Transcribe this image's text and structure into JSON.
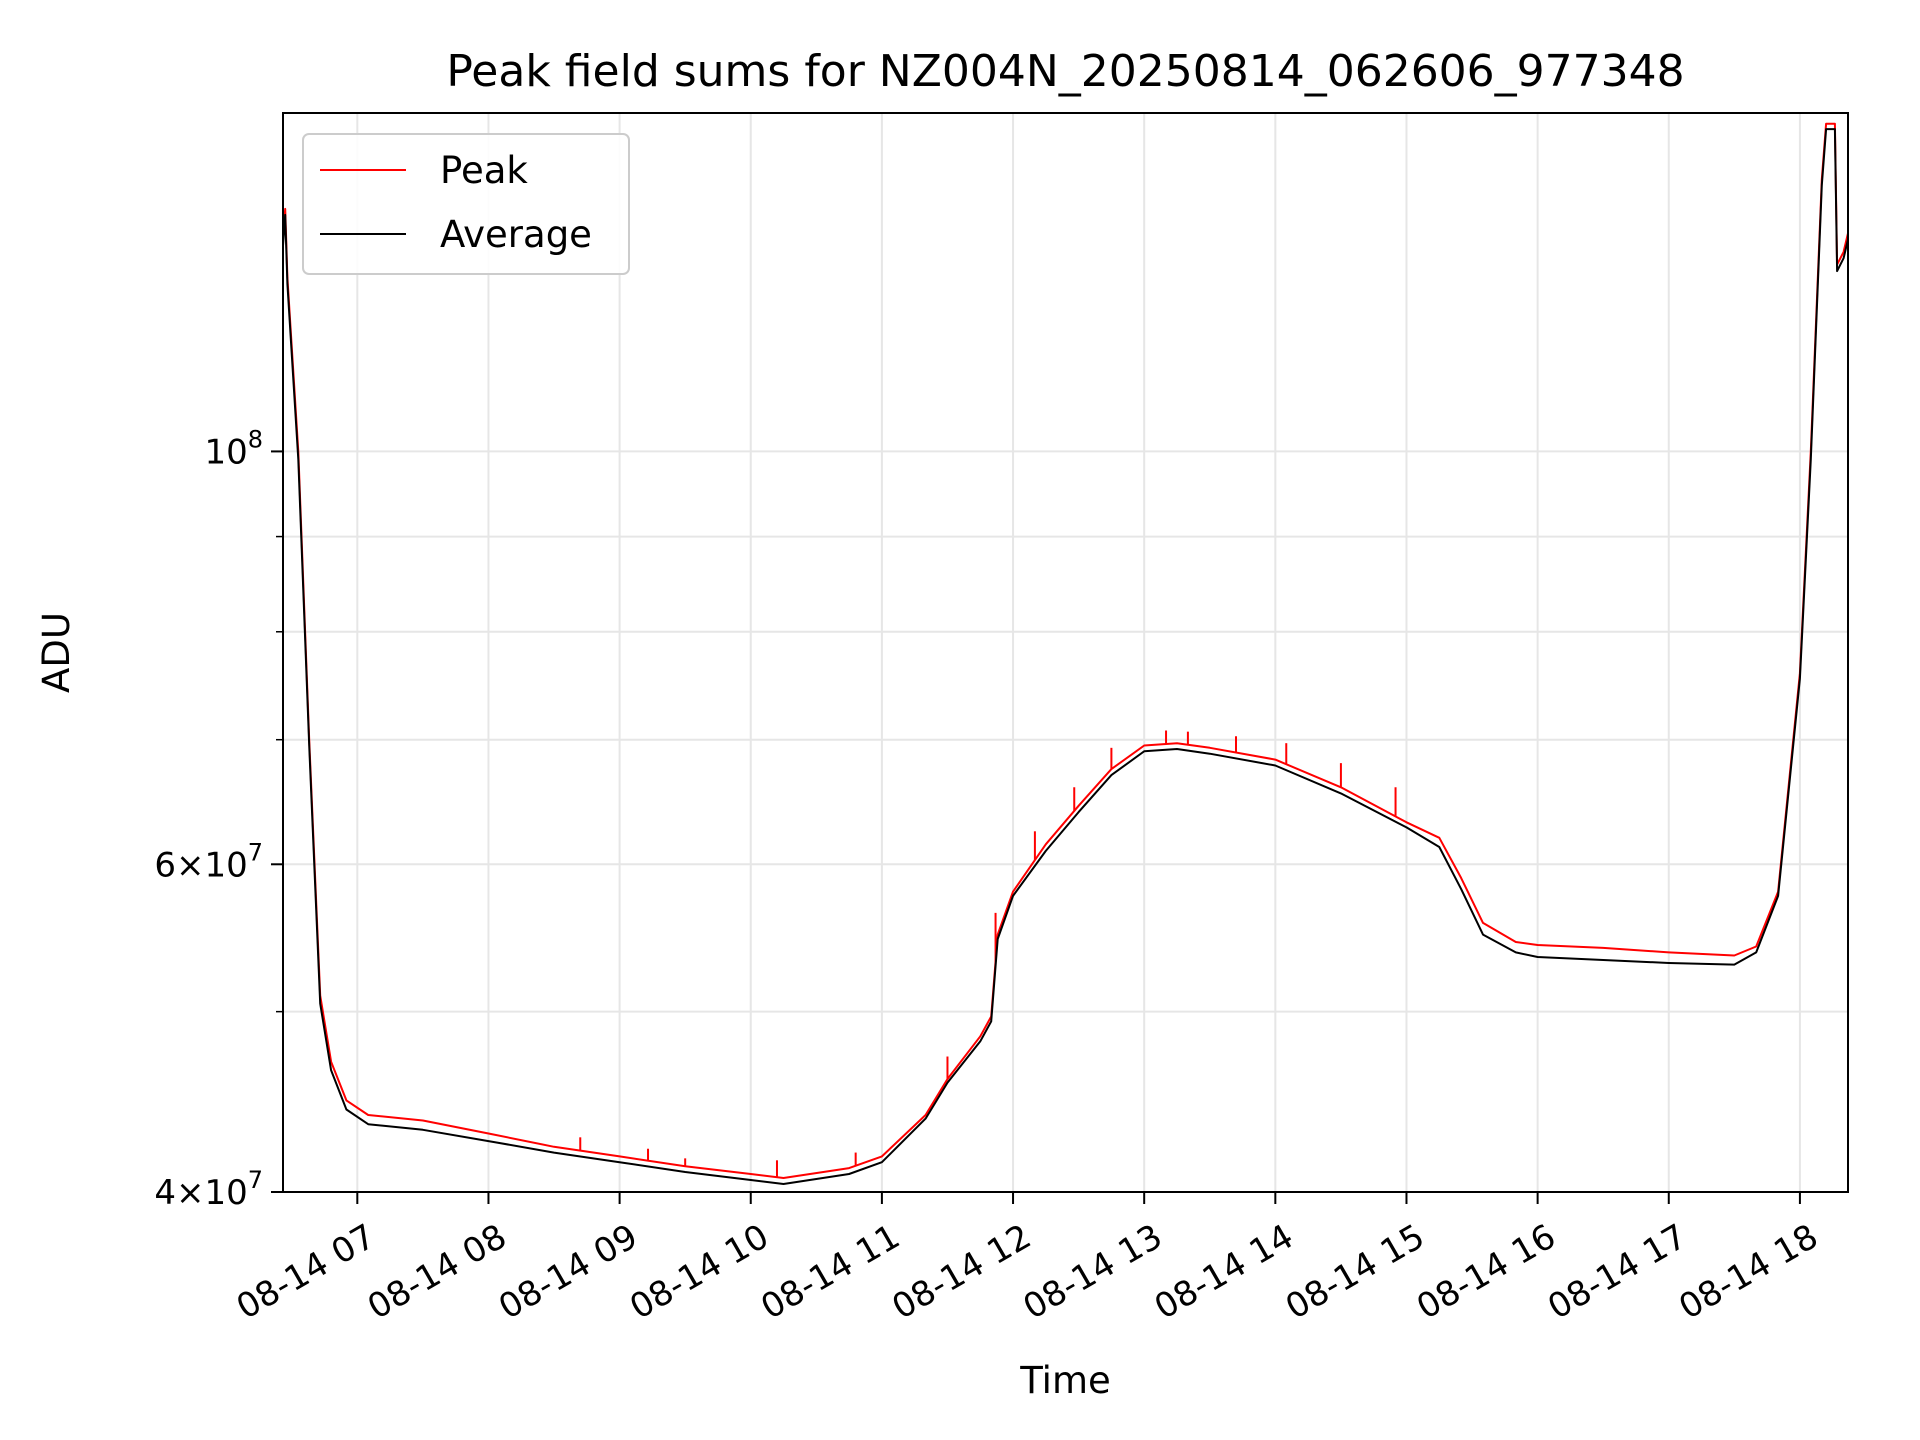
{
  "chart_data": {
    "type": "line",
    "title": "Peak field sums for NZ004N_20250814_062606_977348",
    "xlabel": "Time",
    "ylabel": "ADU",
    "yscale": "log",
    "ylim": [
      40000000,
      152000000
    ],
    "xlim": [
      "2025-08-14T06:26",
      "2025-08-14T18:22"
    ],
    "grid": true,
    "legend": "top-left",
    "x_ticks": [
      {
        "value": "2025-08-14T07:00",
        "label": "08-14 07"
      },
      {
        "value": "2025-08-14T08:00",
        "label": "08-14 08"
      },
      {
        "value": "2025-08-14T09:00",
        "label": "08-14 09"
      },
      {
        "value": "2025-08-14T10:00",
        "label": "08-14 10"
      },
      {
        "value": "2025-08-14T11:00",
        "label": "08-14 11"
      },
      {
        "value": "2025-08-14T12:00",
        "label": "08-14 12"
      },
      {
        "value": "2025-08-14T13:00",
        "label": "08-14 13"
      },
      {
        "value": "2025-08-14T14:00",
        "label": "08-14 14"
      },
      {
        "value": "2025-08-14T15:00",
        "label": "08-14 15"
      },
      {
        "value": "2025-08-14T16:00",
        "label": "08-14 16"
      },
      {
        "value": "2025-08-14T17:00",
        "label": "08-14 17"
      },
      {
        "value": "2025-08-14T18:00",
        "label": "08-14 18"
      }
    ],
    "y_ticks": [
      {
        "value": 40000000,
        "base": "4×10",
        "exp": "7"
      },
      {
        "value": 60000000,
        "base": "6×10",
        "exp": "7"
      },
      {
        "value": 100000000,
        "base": "10",
        "exp": "8"
      }
    ],
    "y_minor": [
      50000000,
      70000000,
      80000000,
      90000000
    ],
    "series": [
      {
        "name": "Peak",
        "color": "#ff0000",
        "x": [
          "2025-08-14T06:26",
          "2025-08-14T06:27",
          "2025-08-14T06:28",
          "2025-08-14T06:33",
          "2025-08-14T06:38",
          "2025-08-14T06:43",
          "2025-08-14T06:48",
          "2025-08-14T06:55",
          "2025-08-14T07:05",
          "2025-08-14T07:30",
          "2025-08-14T08:00",
          "2025-08-14T08:30",
          "2025-08-14T09:00",
          "2025-08-14T09:30",
          "2025-08-14T10:00",
          "2025-08-14T10:15",
          "2025-08-14T10:45",
          "2025-08-14T11:00",
          "2025-08-14T11:20",
          "2025-08-14T11:30",
          "2025-08-14T11:45",
          "2025-08-14T11:50",
          "2025-08-14T11:53",
          "2025-08-14T12:00",
          "2025-08-14T12:15",
          "2025-08-14T12:30",
          "2025-08-14T12:45",
          "2025-08-14T13:00",
          "2025-08-14T13:15",
          "2025-08-14T13:30",
          "2025-08-14T14:00",
          "2025-08-14T14:30",
          "2025-08-14T15:00",
          "2025-08-14T15:15",
          "2025-08-14T15:25",
          "2025-08-14T15:35",
          "2025-08-14T15:50",
          "2025-08-14T16:00",
          "2025-08-14T16:30",
          "2025-08-14T17:00",
          "2025-08-14T17:30",
          "2025-08-14T17:40",
          "2025-08-14T17:50",
          "2025-08-14T18:00",
          "2025-08-14T18:05",
          "2025-08-14T18:10",
          "2025-08-14T18:12",
          "2025-08-14T18:16",
          "2025-08-14T18:17",
          "2025-08-14T18:20",
          "2025-08-14T18:22"
        ],
        "y": [
          130000000,
          135000000,
          124000000,
          100000000,
          70000000,
          51000000,
          47000000,
          44800000,
          44000000,
          43700000,
          43000000,
          42300000,
          41800000,
          41300000,
          40900000,
          40700000,
          41200000,
          41800000,
          44000000,
          46000000,
          48500000,
          49700000,
          55000000,
          58000000,
          61500000,
          64500000,
          67500000,
          69500000,
          69700000,
          69300000,
          68300000,
          66000000,
          63200000,
          62000000,
          59000000,
          55800000,
          54500000,
          54300000,
          54100000,
          53800000,
          53600000,
          54200000,
          58000000,
          76000000,
          100000000,
          140000000,
          150000000,
          150000000,
          126000000,
          128000000,
          131000000
        ],
        "spikes": [
          {
            "x": "2025-08-14T08:42",
            "y": 42800000
          },
          {
            "x": "2025-08-14T09:13",
            "y": 42200000
          },
          {
            "x": "2025-08-14T09:30",
            "y": 41700000
          },
          {
            "x": "2025-08-14T10:12",
            "y": 41600000
          },
          {
            "x": "2025-08-14T10:48",
            "y": 42000000
          },
          {
            "x": "2025-08-14T11:30",
            "y": 47300000
          },
          {
            "x": "2025-08-14T11:52",
            "y": 56500000
          },
          {
            "x": "2025-08-14T12:10",
            "y": 62500000
          },
          {
            "x": "2025-08-14T12:28",
            "y": 66000000
          },
          {
            "x": "2025-08-14T12:45",
            "y": 69300000
          },
          {
            "x": "2025-08-14T13:10",
            "y": 70800000
          },
          {
            "x": "2025-08-14T13:20",
            "y": 70700000
          },
          {
            "x": "2025-08-14T13:42",
            "y": 70300000
          },
          {
            "x": "2025-08-14T14:05",
            "y": 69700000
          },
          {
            "x": "2025-08-14T14:30",
            "y": 68000000
          },
          {
            "x": "2025-08-14T14:55",
            "y": 66000000
          }
        ]
      },
      {
        "name": "Average",
        "color": "#000000",
        "x": [
          "2025-08-14T06:26",
          "2025-08-14T06:27",
          "2025-08-14T06:28",
          "2025-08-14T06:33",
          "2025-08-14T06:38",
          "2025-08-14T06:43",
          "2025-08-14T06:48",
          "2025-08-14T06:55",
          "2025-08-14T07:05",
          "2025-08-14T07:30",
          "2025-08-14T08:00",
          "2025-08-14T08:30",
          "2025-08-14T09:00",
          "2025-08-14T09:30",
          "2025-08-14T10:00",
          "2025-08-14T10:15",
          "2025-08-14T10:45",
          "2025-08-14T11:00",
          "2025-08-14T11:20",
          "2025-08-14T11:30",
          "2025-08-14T11:45",
          "2025-08-14T11:50",
          "2025-08-14T11:53",
          "2025-08-14T12:00",
          "2025-08-14T12:15",
          "2025-08-14T12:30",
          "2025-08-14T12:45",
          "2025-08-14T13:00",
          "2025-08-14T13:15",
          "2025-08-14T13:30",
          "2025-08-14T14:00",
          "2025-08-14T14:30",
          "2025-08-14T15:00",
          "2025-08-14T15:15",
          "2025-08-14T15:25",
          "2025-08-14T15:35",
          "2025-08-14T15:50",
          "2025-08-14T16:00",
          "2025-08-14T16:30",
          "2025-08-14T17:00",
          "2025-08-14T17:30",
          "2025-08-14T17:40",
          "2025-08-14T17:50",
          "2025-08-14T18:00",
          "2025-08-14T18:05",
          "2025-08-14T18:10",
          "2025-08-14T18:12",
          "2025-08-14T18:16",
          "2025-08-14T18:17",
          "2025-08-14T18:20",
          "2025-08-14T18:22"
        ],
        "y": [
          129000000,
          134000000,
          123000000,
          99000000,
          69500000,
          50500000,
          46500000,
          44300000,
          43500000,
          43200000,
          42600000,
          42000000,
          41500000,
          41000000,
          40600000,
          40400000,
          40900000,
          41500000,
          43800000,
          45800000,
          48200000,
          49400000,
          54700000,
          57700000,
          61000000,
          64000000,
          67000000,
          69000000,
          69200000,
          68800000,
          67800000,
          65500000,
          62800000,
          61300000,
          58200000,
          55000000,
          53800000,
          53500000,
          53300000,
          53100000,
          53000000,
          53800000,
          57700000,
          75500000,
          99000000,
          139000000,
          149000000,
          149000000,
          125000000,
          127000000,
          130000000
        ]
      }
    ]
  }
}
